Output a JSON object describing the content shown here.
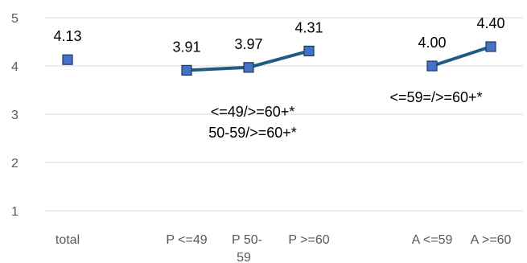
{
  "chart_data": {
    "type": "line",
    "categories": [
      "total",
      "P <=49",
      "P 50-59",
      "P >=60",
      "",
      "A <=59",
      "A >=60"
    ],
    "ylim": [
      1,
      5
    ],
    "yticks": [
      1,
      2,
      3,
      4,
      5
    ],
    "grid": true,
    "points": [
      {
        "category": "total",
        "value": 4.13,
        "label": "4.13"
      },
      {
        "category": "P <=49",
        "value": 3.91,
        "label": "3.91"
      },
      {
        "category": "P 50-59",
        "value": 3.97,
        "label": "3.97"
      },
      {
        "category": "P >=60",
        "value": 4.31,
        "label": "4.31"
      },
      {
        "category": "A <=59",
        "value": 4.0,
        "label": "4.00"
      },
      {
        "category": "A >=60",
        "value": 4.4,
        "label": "4.40"
      }
    ],
    "segments": [
      [
        "P <=49",
        "P 50-59",
        "P >=60"
      ],
      [
        "A <=59",
        "A >=60"
      ]
    ],
    "annotations": [
      {
        "text": "<=49/>=60+*",
        "anchor_category": "P 50-59",
        "value": 3.05
      },
      {
        "text": "50-59/>=60+*",
        "anchor_category": "P 50-59",
        "value": 2.62
      },
      {
        "text": "<=59=/>=60+*",
        "anchor_category": "A <=59",
        "value": 3.35
      }
    ],
    "colors": {
      "line": "#1F5C84",
      "marker": "#4472C4",
      "marker_edge": "#1F3864",
      "grid": "#D9D9D9"
    }
  }
}
